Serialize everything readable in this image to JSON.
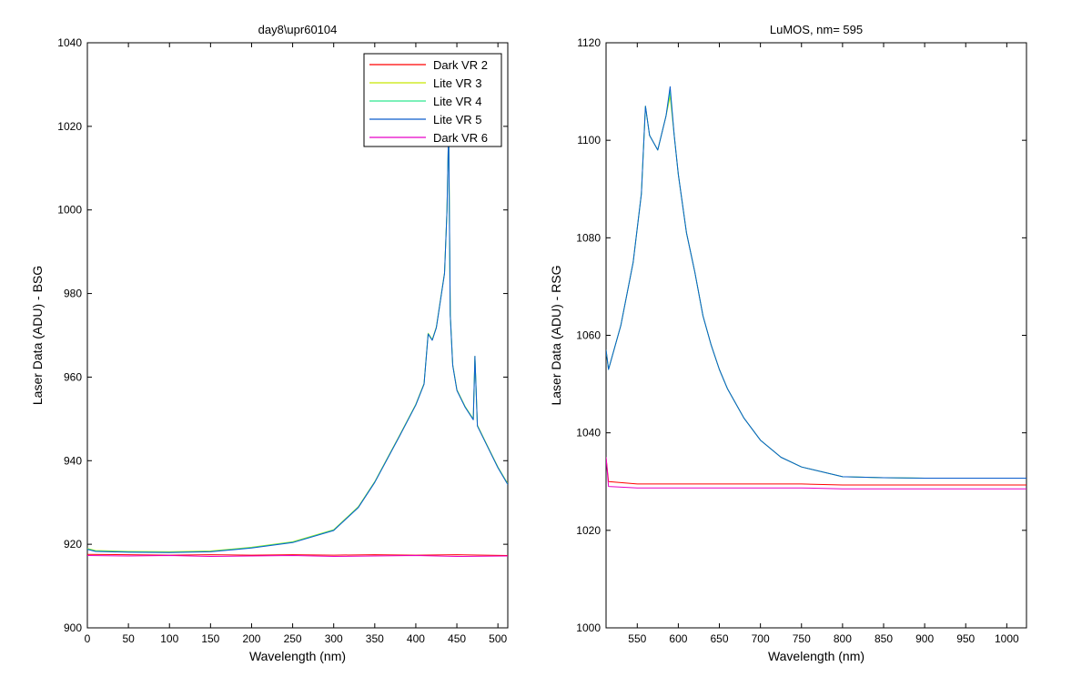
{
  "chart_data": [
    {
      "type": "line",
      "title": "day8\\upr60104",
      "xlabel": "Wavelength (nm)",
      "ylabel": "Laser Data (ADU) - BSG",
      "xlim": [
        0,
        512
      ],
      "ylim": [
        900,
        1040
      ],
      "xticks": [
        "0",
        "50",
        "100",
        "150",
        "200",
        "250",
        "300",
        "350",
        "400",
        "450",
        "500"
      ],
      "yticks": [
        "900",
        "920",
        "940",
        "960",
        "980",
        "1000",
        "1020",
        "1040"
      ],
      "legend_position": "top-right",
      "series": [
        {
          "name": "Dark VR 2",
          "color": "#ff0000",
          "x": [
            0,
            50,
            100,
            150,
            200,
            250,
            300,
            350,
            400,
            450,
            512
          ],
          "y": [
            917.6,
            917.5,
            917.4,
            917.5,
            917.4,
            917.5,
            917.4,
            917.5,
            917.4,
            917.5,
            917.3
          ]
        },
        {
          "name": "Lite VR 3",
          "color": "#c8e600",
          "x": [
            0,
            10,
            50,
            100,
            150,
            200,
            250,
            300,
            330,
            350,
            380,
            400,
            410,
            415,
            420,
            425,
            435,
            438,
            440,
            442,
            445,
            450,
            460,
            470,
            472,
            475,
            490,
            500,
            512
          ],
          "y": [
            919,
            918.5,
            918.3,
            918.2,
            918.4,
            919.3,
            920.6,
            923.5,
            929,
            935,
            946,
            953.5,
            958.5,
            970.5,
            969,
            972,
            985,
            1000,
            1020,
            975,
            963,
            957,
            953,
            950,
            965,
            948.5,
            942.5,
            938.5,
            934.5
          ]
        },
        {
          "name": "Lite VR 4",
          "color": "#2ee88f",
          "x": [
            0,
            10,
            50,
            100,
            150,
            200,
            250,
            300,
            330,
            350,
            380,
            400,
            410,
            415,
            420,
            425,
            435,
            438,
            440,
            442,
            445,
            450,
            460,
            470,
            472,
            475,
            490,
            500,
            512
          ],
          "y": [
            918.9,
            918.4,
            918.2,
            918.1,
            918.3,
            919.2,
            920.5,
            923.4,
            928.9,
            934.9,
            945.9,
            953.4,
            958.4,
            970.4,
            968.9,
            971.9,
            984.9,
            999.9,
            1019.9,
            974.9,
            962.9,
            956.9,
            952.9,
            949.9,
            964.9,
            948.4,
            942.4,
            938.4,
            934.4
          ]
        },
        {
          "name": "Lite VR 5",
          "color": "#0a5ccc",
          "x": [
            0,
            10,
            50,
            100,
            150,
            200,
            250,
            300,
            330,
            350,
            380,
            400,
            410,
            415,
            420,
            425,
            435,
            438,
            440,
            442,
            445,
            450,
            460,
            470,
            472,
            475,
            490,
            500,
            512
          ],
          "y": [
            918.8,
            918.3,
            918.1,
            918,
            918.2,
            919.1,
            920.4,
            923.3,
            928.8,
            934.8,
            945.8,
            953.3,
            958.3,
            970.3,
            968.8,
            971.8,
            984.8,
            999.8,
            1020,
            974.8,
            962.8,
            956.8,
            952.8,
            949.8,
            965,
            948.3,
            942.3,
            938.3,
            934.3
          ]
        },
        {
          "name": "Dark VR 6",
          "color": "#e600c8",
          "x": [
            0,
            50,
            100,
            150,
            200,
            250,
            300,
            350,
            400,
            450,
            512
          ],
          "y": [
            917.3,
            917.2,
            917.3,
            917.1,
            917.2,
            917.3,
            917.1,
            917.2,
            917.3,
            917.1,
            917.2
          ]
        }
      ]
    },
    {
      "type": "line",
      "title": "LuMOS, nm= 595",
      "xlabel": "Wavelength (nm)",
      "ylabel": "Laser Data (ADU) - RSG",
      "xlim": [
        512,
        1024
      ],
      "ylim": [
        1000,
        1120
      ],
      "xticks": [
        "550",
        "600",
        "650",
        "700",
        "750",
        "800",
        "850",
        "900",
        "950",
        "1000"
      ],
      "yticks": [
        "1000",
        "1020",
        "1040",
        "1060",
        "1080",
        "1100",
        "1120"
      ],
      "series": [
        {
          "name": "Dark VR 2",
          "color": "#ff0000",
          "x": [
            512,
            515,
            550,
            600,
            650,
            700,
            750,
            800,
            850,
            900,
            950,
            1000,
            1024
          ],
          "y": [
            1035,
            1030,
            1029.5,
            1029.5,
            1029.5,
            1029.5,
            1029.5,
            1029.3,
            1029.3,
            1029.3,
            1029.3,
            1029.3,
            1029.3
          ]
        },
        {
          "name": "Lite VR 3",
          "color": "#c8e600",
          "x": [
            512,
            515,
            530,
            545,
            555,
            560,
            565,
            575,
            585,
            590,
            595,
            600,
            610,
            620,
            630,
            640,
            650,
            660,
            680,
            700,
            725,
            750,
            800,
            850,
            900,
            950,
            1000,
            1024
          ],
          "y": [
            1057,
            1053,
            1062,
            1075,
            1089,
            1107,
            1101,
            1098,
            1105,
            1109,
            1101,
            1093,
            1081,
            1073,
            1064,
            1058,
            1053,
            1049,
            1043,
            1038.5,
            1035,
            1033,
            1031,
            1030.8,
            1030.7,
            1030.7,
            1030.7,
            1030.7
          ]
        },
        {
          "name": "Lite VR 4",
          "color": "#2ee88f",
          "x": [
            512,
            515,
            530,
            545,
            555,
            560,
            565,
            575,
            585,
            590,
            595,
            600,
            610,
            620,
            630,
            640,
            650,
            660,
            680,
            700,
            725,
            750,
            800,
            850,
            900,
            950,
            1000,
            1024
          ],
          "y": [
            1057,
            1053,
            1062,
            1075,
            1089,
            1107,
            1101,
            1098,
            1105,
            1110,
            1101,
            1093,
            1081,
            1073,
            1064,
            1058,
            1053,
            1049,
            1043,
            1038.5,
            1035,
            1033,
            1031,
            1030.8,
            1030.7,
            1030.7,
            1030.7,
            1030.7
          ]
        },
        {
          "name": "Lite VR 5",
          "color": "#0a5ccc",
          "x": [
            512,
            515,
            530,
            545,
            555,
            560,
            565,
            575,
            585,
            590,
            595,
            600,
            610,
            620,
            630,
            640,
            650,
            660,
            680,
            700,
            725,
            750,
            800,
            850,
            900,
            950,
            1000,
            1024
          ],
          "y": [
            1057,
            1053,
            1062,
            1075,
            1089,
            1107,
            1101,
            1098,
            1105,
            1111,
            1101,
            1093,
            1081,
            1073,
            1064,
            1058,
            1053,
            1049,
            1043,
            1038.5,
            1035,
            1033,
            1031,
            1030.8,
            1030.7,
            1030.7,
            1030.7,
            1030.7
          ]
        },
        {
          "name": "Dark VR 6",
          "color": "#e600c8",
          "x": [
            512,
            515,
            550,
            600,
            650,
            700,
            750,
            800,
            850,
            900,
            950,
            1000,
            1024
          ],
          "y": [
            1035,
            1029,
            1028.7,
            1028.7,
            1028.7,
            1028.7,
            1028.7,
            1028.5,
            1028.5,
            1028.5,
            1028.5,
            1028.5,
            1028.5
          ]
        }
      ]
    }
  ]
}
